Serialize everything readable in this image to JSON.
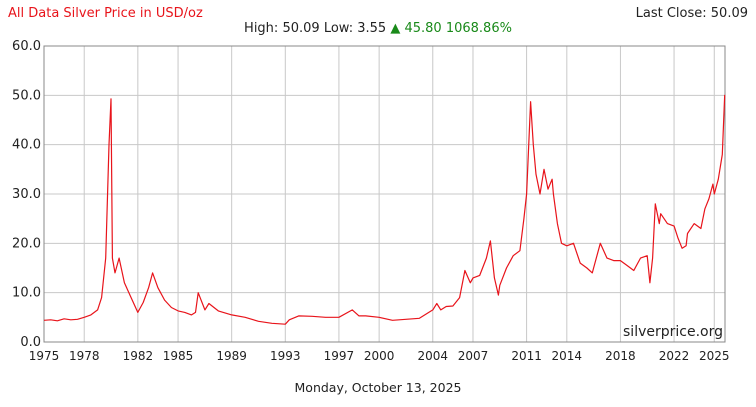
{
  "header": {
    "title": "All Data Silver Price in USD/oz",
    "last_close_label": "Last Close:",
    "last_close_value": "50.09",
    "high_label": "High:",
    "high_value": "50.09",
    "low_label": "Low:",
    "low_value": "3.55",
    "change_arrow": "▲",
    "change_value": "45.80",
    "change_pct": "1068.86%"
  },
  "footer": {
    "date": "Monday, October 13, 2025"
  },
  "watermark": "silverprice.org",
  "colors": {
    "line": "#e8141b",
    "grid": "#c8c8c8",
    "title": "#e8141b",
    "up": "#1a8a1a"
  },
  "chart_data": {
    "type": "line",
    "title": "All Data Silver Price in USD/oz",
    "xlabel": "",
    "ylabel": "",
    "xlim": [
      1975,
      2025.8
    ],
    "ylim": [
      0,
      60
    ],
    "grid": true,
    "legend": "none",
    "x_ticks": [
      1975,
      1978,
      1982,
      1985,
      1989,
      1993,
      1997,
      2000,
      2004,
      2007,
      2011,
      2014,
      2018,
      2022,
      2025
    ],
    "x_tick_labels": [
      "1975",
      "1978",
      "1982",
      "1985",
      "1989",
      "1993",
      "1997",
      "2000",
      "2004",
      "2007",
      "2011",
      "2014",
      "2018",
      "2022",
      "2025"
    ],
    "y_ticks": [
      0,
      10,
      20,
      30,
      40,
      50,
      60
    ],
    "y_tick_labels": [
      "0.0",
      "10.0",
      "20.0",
      "30.0",
      "40.0",
      "50.0",
      "60.0"
    ],
    "series": [
      {
        "x": [
          1975.0,
          1975.5,
          1976.0,
          1976.5,
          1977.0,
          1977.5,
          1978.0,
          1978.5,
          1979.0,
          1979.3,
          1979.6,
          1979.85,
          1980.0,
          1980.1,
          1980.3,
          1980.6,
          1981.0,
          1981.5,
          1982.0,
          1982.4,
          1982.8,
          1983.1,
          1983.5,
          1984.0,
          1984.5,
          1985.0,
          1985.5,
          1986.0,
          1986.3,
          1986.5,
          1987.0,
          1987.3,
          1988.0,
          1989.0,
          1990.0,
          1991.0,
          1992.0,
          1993.0,
          1993.3,
          1994.0,
          1995.0,
          1996.0,
          1997.0,
          1998.0,
          1998.5,
          1999.0,
          2000.0,
          2001.0,
          2002.0,
          2003.0,
          2004.0,
          2004.3,
          2004.6,
          2005.0,
          2005.5,
          2006.0,
          2006.4,
          2006.8,
          2007.0,
          2007.5,
          2008.0,
          2008.3,
          2008.6,
          2008.9,
          2009.0,
          2009.5,
          2010.0,
          2010.5,
          2010.8,
          2011.0,
          2011.3,
          2011.5,
          2011.7,
          2012.0,
          2012.3,
          2012.6,
          2012.9,
          2013.0,
          2013.3,
          2013.6,
          2014.0,
          2014.5,
          2015.0,
          2015.5,
          2015.9,
          2016.0,
          2016.5,
          2017.0,
          2017.5,
          2018.0,
          2018.5,
          2019.0,
          2019.5,
          2020.0,
          2020.2,
          2020.4,
          2020.6,
          2020.9,
          2021.0,
          2021.5,
          2022.0,
          2022.3,
          2022.6,
          2022.9,
          2023.0,
          2023.5,
          2024.0,
          2024.3,
          2024.6,
          2024.9,
          2025.0,
          2025.3,
          2025.6,
          2025.78
        ],
        "values": [
          4.4,
          4.5,
          4.3,
          4.7,
          4.5,
          4.6,
          5.0,
          5.5,
          6.5,
          9.0,
          17.0,
          40.0,
          49.3,
          17.0,
          14.0,
          17.0,
          12.0,
          9.0,
          6.0,
          8.0,
          11.0,
          14.0,
          11.0,
          8.5,
          7.0,
          6.3,
          6.0,
          5.5,
          6.0,
          10.0,
          6.5,
          7.8,
          6.3,
          5.5,
          5.0,
          4.2,
          3.8,
          3.6,
          4.5,
          5.3,
          5.2,
          5.0,
          5.0,
          6.5,
          5.3,
          5.3,
          5.0,
          4.4,
          4.6,
          4.8,
          6.5,
          7.8,
          6.5,
          7.2,
          7.3,
          9.0,
          14.5,
          12.0,
          13.0,
          13.5,
          17.0,
          20.5,
          13.0,
          9.5,
          11.5,
          15.0,
          17.5,
          18.5,
          25.0,
          30.0,
          48.7,
          40.0,
          34.0,
          30.0,
          35.0,
          31.0,
          33.0,
          30.0,
          24.0,
          20.0,
          19.5,
          20.0,
          16.0,
          15.0,
          14.0,
          15.0,
          20.0,
          17.0,
          16.5,
          16.5,
          15.5,
          14.5,
          17.0,
          17.5,
          12.0,
          17.0,
          28.0,
          24.0,
          26.0,
          24.0,
          23.5,
          21.0,
          19.0,
          19.5,
          22.0,
          24.0,
          23.0,
          27.0,
          29.0,
          32.0,
          30.0,
          33.0,
          38.0,
          50.09
        ]
      }
    ]
  }
}
